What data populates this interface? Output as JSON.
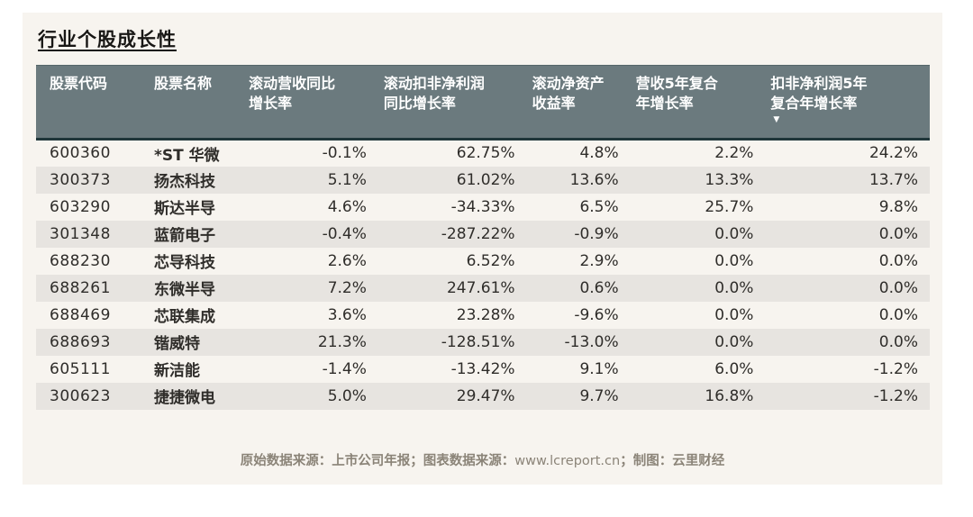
{
  "title": "行业个股成长性",
  "chart_data": {
    "type": "table",
    "title": "行业个股成长性",
    "sort": {
      "column": "np_cagr5y",
      "direction": "desc"
    },
    "columns": [
      {
        "id": "code",
        "label": "股票代码",
        "lines": [
          "股票代码"
        ],
        "align": "left",
        "sorted": false
      },
      {
        "id": "name",
        "label": "股票名称",
        "lines": [
          "股票名称"
        ],
        "align": "left",
        "sorted": false
      },
      {
        "id": "rev_yoy",
        "label": "滚动营收同比增长率",
        "lines": [
          "滚动营收同比",
          "增长率"
        ],
        "align": "right",
        "sorted": false
      },
      {
        "id": "np_yoy",
        "label": "滚动扣非净利润同比增长率",
        "lines": [
          "滚动扣非净利润",
          "同比增长率"
        ],
        "align": "right",
        "sorted": false
      },
      {
        "id": "roe",
        "label": "滚动净资产收益率",
        "lines": [
          "滚动净资产",
          "收益率"
        ],
        "align": "right",
        "sorted": false
      },
      {
        "id": "rev_cagr5y",
        "label": "营收5年复合年增长率",
        "lines": [
          "营收5年复合",
          "年增长率"
        ],
        "align": "right",
        "sorted": false
      },
      {
        "id": "np_cagr5y",
        "label": "扣非净利润5年复合年增长率",
        "lines": [
          "扣非净利润5年",
          "复合年增长率"
        ],
        "align": "right",
        "sorted": true,
        "sort_icon": "▼"
      }
    ],
    "rows": [
      [
        "600360",
        "*ST 华微",
        "-0.1%",
        "62.75%",
        "4.8%",
        "2.2%",
        "24.2%"
      ],
      [
        "300373",
        "扬杰科技",
        "5.1%",
        "61.02%",
        "13.6%",
        "13.3%",
        "13.7%"
      ],
      [
        "603290",
        "斯达半导",
        "4.6%",
        "-34.33%",
        "6.5%",
        "25.7%",
        "9.8%"
      ],
      [
        "301348",
        "蓝箭电子",
        "-0.4%",
        "-287.22%",
        "-0.9%",
        "0.0%",
        "0.0%"
      ],
      [
        "688230",
        "芯导科技",
        "2.6%",
        "6.52%",
        "2.9%",
        "0.0%",
        "0.0%"
      ],
      [
        "688261",
        "东微半导",
        "7.2%",
        "247.61%",
        "0.6%",
        "0.0%",
        "0.0%"
      ],
      [
        "688469",
        "芯联集成",
        "3.6%",
        "23.28%",
        "-9.6%",
        "0.0%",
        "0.0%"
      ],
      [
        "688693",
        "锴威特",
        "21.3%",
        "-128.51%",
        "-13.0%",
        "0.0%",
        "0.0%"
      ],
      [
        "605111",
        "新洁能",
        "-1.4%",
        "-13.42%",
        "9.1%",
        "6.0%",
        "-1.2%"
      ],
      [
        "300623",
        "捷捷微电",
        "5.0%",
        "29.47%",
        "9.7%",
        "16.8%",
        "-1.2%"
      ]
    ]
  },
  "footer": {
    "prefix": "原始数据来源：上市公司年报；图表数据来源：",
    "url": "www.lcreport.cn",
    "suffix": "；制图：云里财经"
  },
  "colors": {
    "header_bg": "#6b7a7e",
    "header_border": "#20363a",
    "row_alt_bg": "#e7e4e0",
    "card_bg": "#f7f4ef",
    "text": "#2f2d2a",
    "footer_text": "#8b8478"
  }
}
